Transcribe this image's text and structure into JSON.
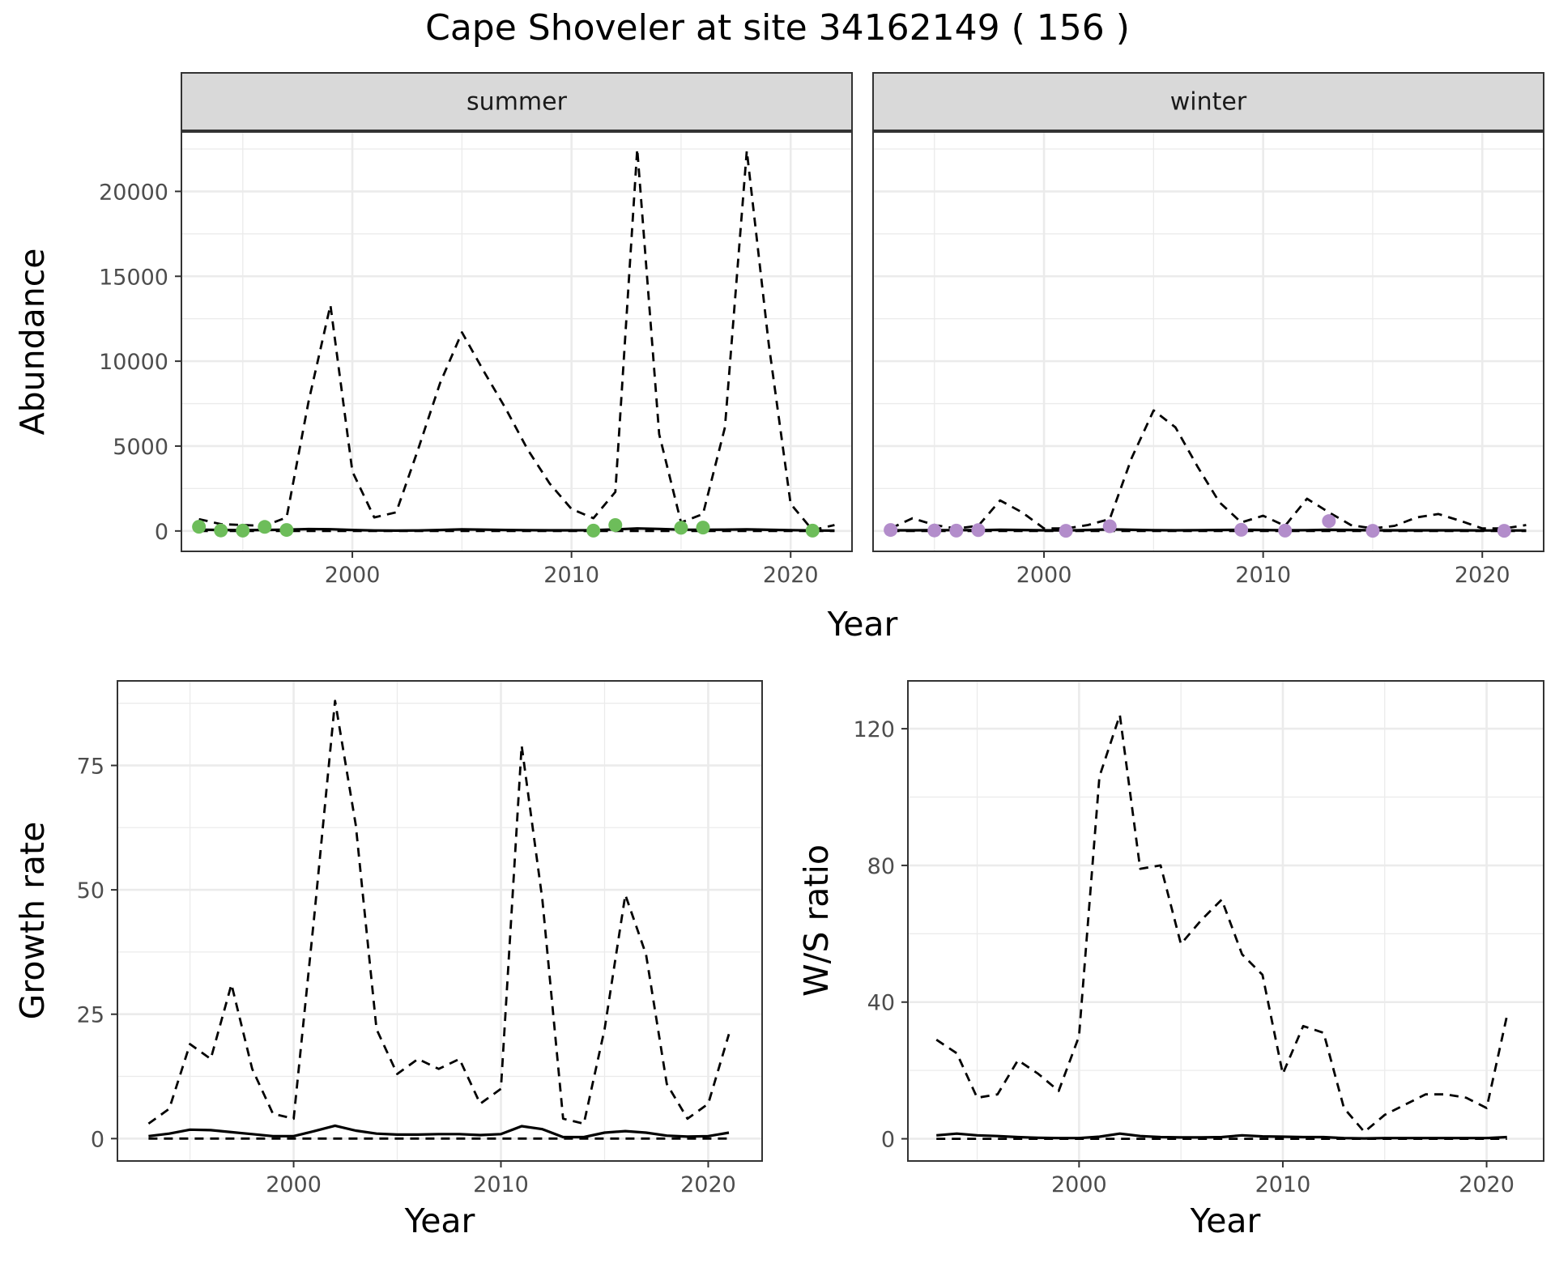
{
  "title": "Cape Shoveler at site 34162149 ( 156 )",
  "colors": {
    "summer_points": "#6dbd5a",
    "winter_points": "#b38dcb",
    "line": "#000000",
    "strip_fill": "#d9d9d9",
    "grid": "#ebebeb"
  },
  "chart_data": [
    {
      "type": "line",
      "facet": "summer",
      "xlabel": "Year",
      "ylabel": "Abundance",
      "xlim": [
        1992.2,
        2022.8
      ],
      "ylim": [
        -1200,
        23500
      ],
      "xticks": [
        2000,
        2010,
        2020
      ],
      "yticks": [
        0,
        5000,
        10000,
        15000,
        20000
      ],
      "yticks_labels": [
        "0",
        "5000",
        "10000",
        "15000",
        "20000"
      ],
      "grid": true,
      "lines": [
        {
          "style": "solid",
          "x": [
            1993,
            1994,
            1995,
            1996,
            1997,
            1998,
            1999,
            2000,
            2001,
            2002,
            2003,
            2004,
            2005,
            2006,
            2007,
            2008,
            2009,
            2010,
            2011,
            2012,
            2013,
            2014,
            2015,
            2016,
            2017,
            2018,
            2019,
            2020,
            2021,
            2022
          ],
          "y": [
            80,
            60,
            50,
            60,
            80,
            110,
            100,
            60,
            30,
            20,
            30,
            60,
            90,
            80,
            60,
            50,
            40,
            40,
            50,
            90,
            150,
            120,
            80,
            70,
            80,
            90,
            70,
            50,
            30,
            20
          ]
        },
        {
          "style": "dashed",
          "x": [
            1993,
            1994,
            1995,
            1996,
            1997,
            1998,
            1999,
            2000,
            2001,
            2002,
            2003,
            2004,
            2005,
            2006,
            2007,
            2008,
            2009,
            2010,
            2011,
            2012,
            2013,
            2014,
            2015,
            2016,
            2017,
            2018,
            2019,
            2020,
            2021,
            2022
          ],
          "y": [
            700,
            400,
            350,
            300,
            800,
            7600,
            13300,
            3500,
            800,
            1100,
            4800,
            8700,
            11700,
            9400,
            7200,
            4800,
            2800,
            1300,
            750,
            2300,
            22500,
            5700,
            500,
            1000,
            6100,
            22400,
            11000,
            1600,
            50,
            350
          ]
        },
        {
          "style": "dashed",
          "x": [
            1993,
            2022
          ],
          "y": [
            0,
            0
          ]
        }
      ],
      "points": {
        "x": [
          1993,
          1994,
          1995,
          1996,
          1997,
          2011,
          2012,
          2015,
          2016,
          2021
        ],
        "y": [
          250,
          30,
          20,
          240,
          60,
          20,
          350,
          190,
          200,
          20
        ]
      }
    },
    {
      "type": "line",
      "facet": "winter",
      "xlabel": "Year",
      "ylabel": "",
      "xlim": [
        1992.2,
        2022.8
      ],
      "ylim": [
        -1200,
        23500
      ],
      "xticks": [
        2000,
        2010,
        2020
      ],
      "yticks": [
        0,
        5000,
        10000,
        15000,
        20000
      ],
      "yticks_labels": [],
      "grid": true,
      "lines": [
        {
          "style": "solid",
          "x": [
            1993,
            1994,
            1995,
            1996,
            1997,
            1998,
            1999,
            2000,
            2001,
            2002,
            2003,
            2004,
            2005,
            2006,
            2007,
            2008,
            2009,
            2010,
            2011,
            2012,
            2013,
            2014,
            2015,
            2016,
            2017,
            2018,
            2019,
            2020,
            2021,
            2022
          ],
          "y": [
            40,
            40,
            50,
            50,
            50,
            70,
            60,
            40,
            30,
            60,
            90,
            70,
            50,
            40,
            50,
            60,
            70,
            60,
            40,
            50,
            70,
            60,
            40,
            40,
            40,
            40,
            40,
            30,
            30,
            30
          ]
        },
        {
          "style": "dashed",
          "x": [
            1993,
            1994,
            1995,
            1996,
            1997,
            1998,
            1999,
            2000,
            2001,
            2002,
            2003,
            2004,
            2005,
            2006,
            2007,
            2008,
            2009,
            2010,
            2011,
            2012,
            2013,
            2014,
            2015,
            2016,
            2017,
            2018,
            2019,
            2020,
            2021,
            2022
          ],
          "y": [
            150,
            750,
            350,
            150,
            300,
            1800,
            1100,
            150,
            150,
            350,
            700,
            4300,
            7100,
            6100,
            3800,
            1700,
            500,
            900,
            300,
            1900,
            1100,
            350,
            150,
            300,
            800,
            1000,
            600,
            150,
            150,
            350
          ]
        },
        {
          "style": "dashed",
          "x": [
            1993,
            2022
          ],
          "y": [
            0,
            0
          ]
        }
      ],
      "points": {
        "x": [
          1993,
          1995,
          1996,
          1997,
          2001,
          2003,
          2009,
          2011,
          2013,
          2015,
          2021
        ],
        "y": [
          60,
          30,
          20,
          50,
          10,
          280,
          70,
          20,
          580,
          10,
          10
        ]
      }
    },
    {
      "type": "line",
      "facet": "growth",
      "xlabel": "Year",
      "ylabel": "Growth rate",
      "xlim": [
        1991.5,
        2022.6
      ],
      "ylim": [
        -4.5,
        92
      ],
      "xticks": [
        2000,
        2010,
        2020
      ],
      "yticks": [
        0,
        25,
        50,
        75
      ],
      "yticks_labels": [
        "0",
        "25",
        "50",
        "75"
      ],
      "grid": true,
      "lines": [
        {
          "style": "solid",
          "x": [
            1993,
            1994,
            1995,
            1996,
            1997,
            1998,
            1999,
            2000,
            2001,
            2002,
            2003,
            2004,
            2005,
            2006,
            2007,
            2008,
            2009,
            2010,
            2011,
            2012,
            2013,
            2014,
            2015,
            2016,
            2017,
            2018,
            2019,
            2020,
            2021
          ],
          "y": [
            0.5,
            1.0,
            1.8,
            1.7,
            1.3,
            0.9,
            0.5,
            0.5,
            1.5,
            2.6,
            1.6,
            1.0,
            0.8,
            0.8,
            0.9,
            0.9,
            0.7,
            0.9,
            2.5,
            1.9,
            0.3,
            0.3,
            1.2,
            1.5,
            1.2,
            0.6,
            0.4,
            0.5,
            1.2
          ]
        },
        {
          "style": "dashed",
          "x": [
            1993,
            1994,
            1995,
            1996,
            1997,
            1998,
            1999,
            2000,
            2001,
            2002,
            2003,
            2004,
            2005,
            2006,
            2007,
            2008,
            2009,
            2010,
            2011,
            2012,
            2013,
            2014,
            2015,
            2016,
            2017,
            2018,
            2019,
            2020,
            2021
          ],
          "y": [
            3,
            6,
            19,
            16,
            31,
            14,
            5,
            4,
            45,
            88,
            63,
            22,
            13,
            16,
            14,
            16,
            7,
            10,
            79,
            48,
            4,
            3,
            22,
            49,
            37,
            11,
            4,
            7,
            21
          ]
        },
        {
          "style": "dashed",
          "x": [
            1993,
            2021
          ],
          "y": [
            0,
            0
          ]
        }
      ]
    },
    {
      "type": "line",
      "facet": "ratio",
      "xlabel": "Year",
      "ylabel": "W/S ratio",
      "xlim": [
        1991.6,
        2022.8
      ],
      "ylim": [
        -6.5,
        134
      ],
      "xticks": [
        2000,
        2010,
        2020
      ],
      "yticks": [
        0,
        40,
        80,
        120
      ],
      "yticks_labels": [
        "0",
        "40",
        "80",
        "120"
      ],
      "grid": true,
      "lines": [
        {
          "style": "solid",
          "x": [
            1993,
            1994,
            1995,
            1996,
            1997,
            1998,
            1999,
            2000,
            2001,
            2002,
            2003,
            2004,
            2005,
            2006,
            2007,
            2008,
            2009,
            2010,
            2011,
            2012,
            2013,
            2014,
            2015,
            2016,
            2017,
            2018,
            2019,
            2020,
            2021
          ],
          "y": [
            1,
            1.5,
            1,
            0.8,
            0.5,
            0.3,
            0.2,
            0.2,
            0.6,
            1.5,
            0.8,
            0.5,
            0.4,
            0.4,
            0.5,
            1.0,
            0.7,
            0.6,
            0.5,
            0.5,
            0.2,
            0.1,
            0.2,
            0.2,
            0.2,
            0.2,
            0.2,
            0.2,
            0.5
          ]
        },
        {
          "style": "dashed",
          "x": [
            1993,
            1994,
            1995,
            1996,
            1997,
            1998,
            1999,
            2000,
            2001,
            2002,
            2003,
            2004,
            2005,
            2006,
            2007,
            2008,
            2009,
            2010,
            2011,
            2012,
            2013,
            2014,
            2015,
            2016,
            2017,
            2018,
            2019,
            2020,
            2021
          ],
          "y": [
            29,
            25,
            12,
            13,
            23,
            19,
            14,
            30,
            106,
            124,
            79,
            80,
            57,
            64,
            70,
            54,
            48,
            19,
            33,
            31,
            9,
            2,
            7,
            10,
            13,
            13,
            12,
            9,
            36
          ]
        },
        {
          "style": "dashed",
          "x": [
            1993,
            2021
          ],
          "y": [
            0,
            0
          ]
        }
      ]
    }
  ]
}
